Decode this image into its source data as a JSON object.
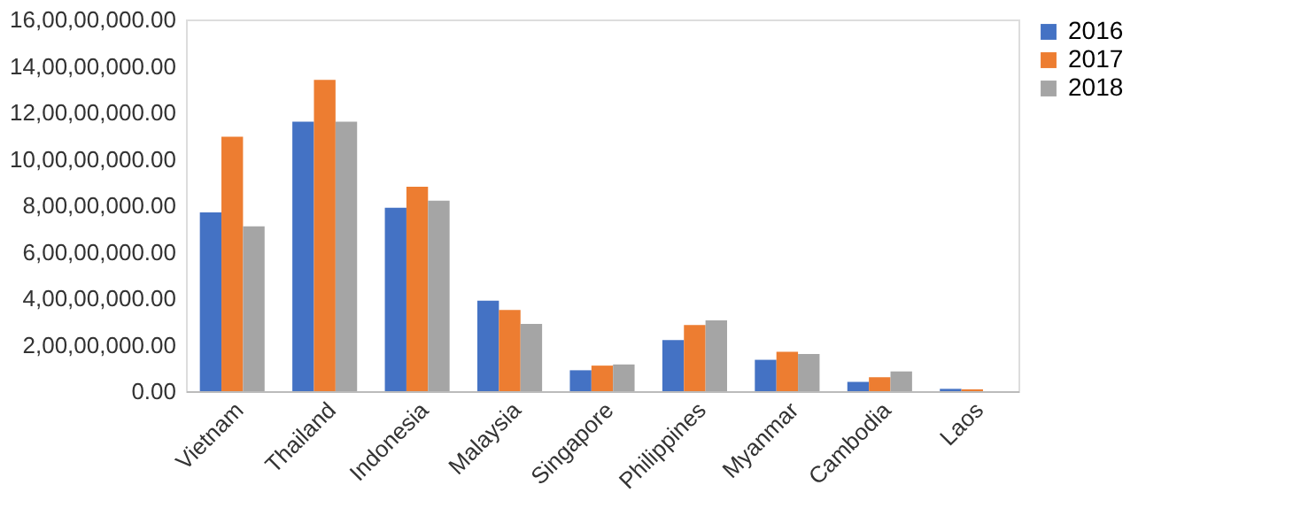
{
  "chart_data": {
    "type": "bar",
    "categories": [
      "Vietnam",
      "Thailand",
      "Indonesia",
      "Malaysia",
      "Singapore",
      "Philippines",
      "Myanmar",
      "Cambodia",
      "Laos"
    ],
    "series": [
      {
        "name": "2016",
        "color": "#4472c4",
        "values": [
          77000000,
          116000000,
          79000000,
          39000000,
          9000000,
          22000000,
          13500000,
          4000000,
          1000000
        ]
      },
      {
        "name": "2017",
        "color": "#ed7d31",
        "values": [
          109500000,
          134000000,
          88000000,
          35000000,
          11000000,
          28500000,
          17000000,
          6000000,
          800000
        ]
      },
      {
        "name": "2018",
        "color": "#a5a5a5",
        "values": [
          71000000,
          116000000,
          82000000,
          29000000,
          11500000,
          30500000,
          16000000,
          8500000,
          null
        ]
      }
    ],
    "ylim": [
      0,
      160000000
    ],
    "yticks": [
      {
        "value": 0,
        "label": "0.00"
      },
      {
        "value": 20000000,
        "label": "2,00,00,000.00"
      },
      {
        "value": 40000000,
        "label": "4,00,00,000.00"
      },
      {
        "value": 60000000,
        "label": "6,00,00,000.00"
      },
      {
        "value": 80000000,
        "label": "8,00,00,000.00"
      },
      {
        "value": 100000000,
        "label": "10,00,00,000.00"
      },
      {
        "value": 120000000,
        "label": "12,00,00,000.00"
      },
      {
        "value": 140000000,
        "label": "14,00,00,000.00"
      },
      {
        "value": 160000000,
        "label": "16,00,00,000.00"
      }
    ],
    "grid": false,
    "legend": "right"
  }
}
